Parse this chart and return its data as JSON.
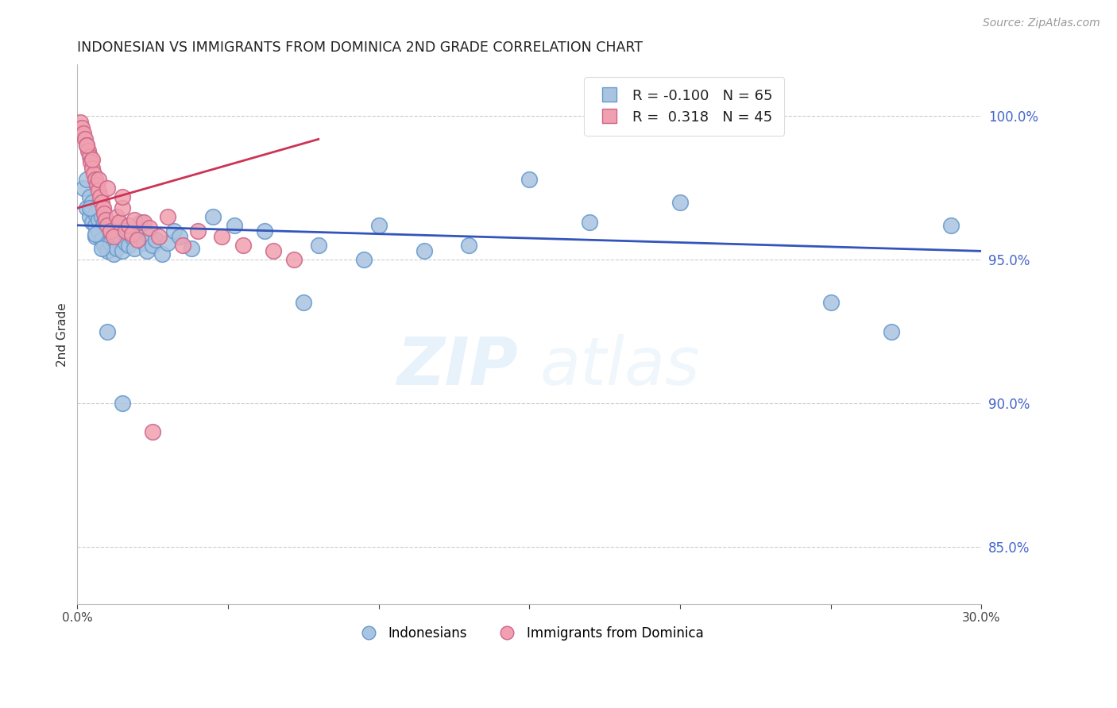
{
  "title": "INDONESIAN VS IMMIGRANTS FROM DOMINICA 2ND GRADE CORRELATION CHART",
  "source": "Source: ZipAtlas.com",
  "ylabel": "2nd Grade",
  "ylabel_right_ticks": [
    85.0,
    90.0,
    95.0,
    100.0
  ],
  "xmin": 0.0,
  "xmax": 30.0,
  "ymin": 83.0,
  "ymax": 101.8,
  "legend_blue_r": "-0.100",
  "legend_blue_n": "65",
  "legend_pink_r": "0.318",
  "legend_pink_n": "45",
  "legend_label_blue": "Indonesians",
  "legend_label_pink": "Immigrants from Dominica",
  "blue_color": "#a8c4e0",
  "blue_edge": "#6699cc",
  "pink_color": "#f0a0b0",
  "pink_edge": "#cc6688",
  "trend_blue_color": "#3355bb",
  "trend_pink_color": "#cc3355",
  "watermark_zip": "ZIP",
  "watermark_atlas": "atlas",
  "blue_x": [
    0.2,
    0.3,
    0.3,
    0.4,
    0.4,
    0.5,
    0.5,
    0.5,
    0.6,
    0.6,
    0.6,
    0.7,
    0.7,
    0.8,
    0.8,
    0.9,
    0.9,
    1.0,
    1.0,
    1.1,
    1.1,
    1.2,
    1.2,
    1.3,
    1.3,
    1.4,
    1.5,
    1.5,
    1.6,
    1.7,
    1.8,
    1.9,
    2.0,
    2.1,
    2.2,
    2.3,
    2.4,
    2.5,
    2.6,
    2.8,
    3.0,
    3.2,
    3.4,
    3.8,
    4.5,
    5.2,
    6.2,
    7.5,
    8.0,
    9.5,
    10.0,
    11.5,
    13.0,
    15.0,
    17.0,
    20.0,
    22.0,
    25.0,
    27.0,
    29.0,
    0.4,
    0.6,
    0.8,
    1.0,
    1.5
  ],
  "blue_y": [
    97.5,
    97.8,
    96.8,
    97.2,
    96.5,
    97.0,
    96.3,
    96.8,
    96.6,
    96.2,
    95.8,
    96.4,
    96.0,
    96.5,
    95.7,
    96.3,
    95.5,
    96.1,
    95.3,
    96.0,
    95.6,
    95.9,
    95.2,
    96.2,
    95.4,
    95.8,
    96.0,
    95.3,
    95.6,
    95.5,
    95.8,
    95.4,
    95.9,
    96.3,
    95.6,
    95.3,
    95.8,
    95.5,
    95.7,
    95.2,
    95.6,
    96.0,
    95.8,
    95.4,
    96.5,
    96.2,
    96.0,
    93.5,
    95.5,
    95.0,
    96.2,
    95.3,
    95.5,
    97.8,
    96.3,
    97.0,
    100.0,
    93.5,
    92.5,
    96.2,
    96.8,
    95.9,
    95.4,
    92.5,
    90.0
  ],
  "pink_x": [
    0.1,
    0.15,
    0.2,
    0.25,
    0.3,
    0.35,
    0.4,
    0.45,
    0.5,
    0.55,
    0.6,
    0.65,
    0.7,
    0.75,
    0.8,
    0.85,
    0.9,
    0.95,
    1.0,
    1.1,
    1.2,
    1.3,
    1.4,
    1.5,
    1.6,
    1.7,
    1.8,
    1.9,
    2.0,
    2.2,
    2.4,
    2.7,
    3.0,
    3.5,
    4.0,
    4.8,
    5.5,
    6.5,
    7.2,
    0.3,
    0.5,
    0.7,
    1.0,
    1.5,
    2.5
  ],
  "pink_y": [
    99.8,
    99.6,
    99.4,
    99.2,
    99.0,
    98.8,
    98.6,
    98.4,
    98.2,
    98.0,
    97.8,
    97.6,
    97.4,
    97.2,
    97.0,
    96.8,
    96.6,
    96.4,
    96.2,
    96.0,
    95.8,
    96.5,
    96.3,
    96.8,
    96.0,
    96.2,
    95.9,
    96.4,
    95.7,
    96.3,
    96.1,
    95.8,
    96.5,
    95.5,
    96.0,
    95.8,
    95.5,
    95.3,
    95.0,
    99.0,
    98.5,
    97.8,
    97.5,
    97.2,
    89.0
  ],
  "blue_trend_x": [
    0.0,
    30.0
  ],
  "blue_trend_y": [
    96.2,
    95.3
  ],
  "pink_trend_x": [
    0.0,
    8.0
  ],
  "pink_trend_y": [
    96.8,
    99.2
  ]
}
